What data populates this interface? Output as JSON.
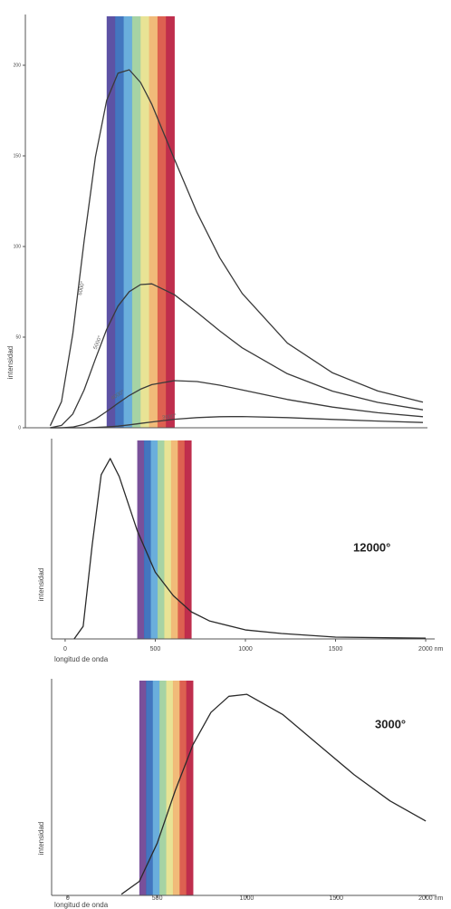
{
  "chart_data": [
    {
      "type": "line",
      "y_label": "intensidad",
      "x": [
        150,
        200,
        250,
        300,
        350,
        400,
        450,
        500,
        550,
        600,
        700,
        800,
        900,
        1000,
        1200,
        1400,
        1600,
        1800
      ],
      "series": [
        {
          "name": "6000°",
          "color": "#3a3a3a",
          "values": [
            1.1,
            14.4,
            51.8,
            102.9,
            149.3,
            180.6,
            195.6,
            197.5,
            190.5,
            178.4,
            148.1,
            118.7,
            93.9,
            74.1,
            46.7,
            30.3,
            20.3,
            14.1
          ]
        },
        {
          "name": "5000°",
          "color": "#3a3a3a",
          "values": [
            0,
            1.3,
            7.6,
            20.8,
            37.9,
            54.3,
            67.1,
            75.1,
            79.0,
            79.4,
            73.4,
            63.7,
            53.5,
            44.1,
            29.8,
            20.2,
            14.0,
            9.9
          ]
        },
        {
          "name": "4000°",
          "color": "#3a3a3a",
          "values": [
            0,
            0,
            0.4,
            1.9,
            4.8,
            9.0,
            13.5,
            17.8,
            21.3,
            23.8,
            26.0,
            25.5,
            23.5,
            20.9,
            15.6,
            11.4,
            8.3,
            6.1
          ]
        },
        {
          "name": "3000°",
          "color": "#3a3a3a",
          "values": [
            0,
            0,
            0,
            0,
            0.2,
            0.5,
            0.9,
            1.6,
            2.4,
            3.2,
            4.7,
            5.6,
            6.1,
            6.2,
            5.6,
            4.6,
            3.7,
            2.9
          ]
        }
      ],
      "xlim": [
        40,
        1820
      ],
      "ylim": [
        0,
        225
      ],
      "yticks": [
        0,
        50,
        100,
        150,
        200
      ],
      "spectrum_range": [
        400,
        700
      ],
      "spectrum_colors": [
        "#4b3f9a",
        "#2f67b8",
        "#5aa5d8",
        "#9cce9a",
        "#e6e08a",
        "#efb46a",
        "#d9503e",
        "#b8173a"
      ]
    },
    {
      "type": "line",
      "y_label": "intensidad",
      "x_label": "longitud de onda",
      "annotation": "12000°",
      "x": [
        50,
        100,
        150,
        200,
        250,
        300,
        350,
        400,
        500,
        600,
        700,
        800,
        1000,
        1200,
        1500,
        2000
      ],
      "series": [
        {
          "color": "#2a2a2a",
          "values": [
            0,
            7,
            52,
            91,
            100,
            90,
            75,
            60,
            37,
            24,
            15,
            10,
            5,
            3,
            1,
            0.4
          ]
        }
      ],
      "xlim": [
        -75,
        2050
      ],
      "ylim": [
        0,
        108
      ],
      "xticks": [
        0,
        500,
        1000,
        1500,
        {
          "value": 2000,
          "label": "2000 nm"
        }
      ],
      "spectrum_range": [
        400,
        700
      ],
      "spectrum_colors": [
        "#6a3d8f",
        "#2f67b8",
        "#5aa5d8",
        "#9cce9a",
        "#e6e08a",
        "#efb46a",
        "#d9503e",
        "#b8173a"
      ]
    },
    {
      "type": "line",
      "y_label": "intensidad",
      "x_label": "longitud de onda",
      "annotation": "3000°",
      "x": [
        300,
        400,
        500,
        600,
        700,
        800,
        900,
        1000,
        1200,
        1400,
        1600,
        1800,
        2000
      ],
      "series": [
        {
          "color": "#2a2a2a",
          "values": [
            0.6,
            7,
            26,
            52,
            75,
            91,
            99,
            100,
            90,
            75,
            60,
            47,
            37
          ]
        }
      ],
      "xlim": [
        -90,
        2060
      ],
      "ylim": [
        0,
        105
      ],
      "xticks": [
        0,
        500,
        1000,
        1500,
        {
          "value": 2000,
          "label": "2000 nm"
        }
      ],
      "spectrum_range": [
        400,
        700
      ],
      "spectrum_colors": [
        "#6a3d8f",
        "#2f67b8",
        "#5aa5d8",
        "#9cce9a",
        "#e6e08a",
        "#efb46a",
        "#d9503e",
        "#b8173a"
      ]
    }
  ]
}
